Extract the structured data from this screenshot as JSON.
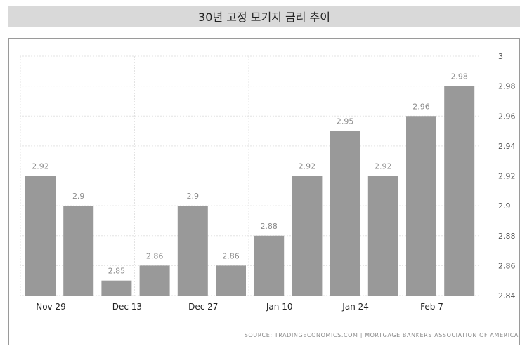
{
  "chart_data": {
    "type": "bar",
    "title": "30년 고정 모기지 금리 추이",
    "xlabel": "",
    "ylabel": "",
    "values": [
      2.92,
      2.9,
      2.85,
      2.86,
      2.9,
      2.86,
      2.88,
      2.92,
      2.95,
      2.92,
      2.96,
      2.98
    ],
    "value_labels": [
      "2.92",
      "2.9",
      "2.85",
      "2.86",
      "2.9",
      "2.86",
      "2.88",
      "2.92",
      "2.95",
      "2.92",
      "2.96",
      "2.98"
    ],
    "x_tick_labels": [
      "Nov 29",
      "Dec 13",
      "Dec 27",
      "Jan 10",
      "Jan 24",
      "Feb 7"
    ],
    "y_ticks": [
      2.84,
      2.86,
      2.88,
      2.9,
      2.92,
      2.94,
      2.96,
      2.98,
      3.0
    ],
    "y_tick_labels": [
      "2.84",
      "2.86",
      "2.88",
      "2.9",
      "2.92",
      "2.94",
      "2.96",
      "2.98",
      "3"
    ],
    "ylim": [
      2.84,
      3.0
    ],
    "grid": true,
    "bar_color": "#999999",
    "source": "SOURCE: TRADINGECONOMICS.COM | MORTGAGE BANKERS ASSOCIATION OF AMERICA"
  }
}
